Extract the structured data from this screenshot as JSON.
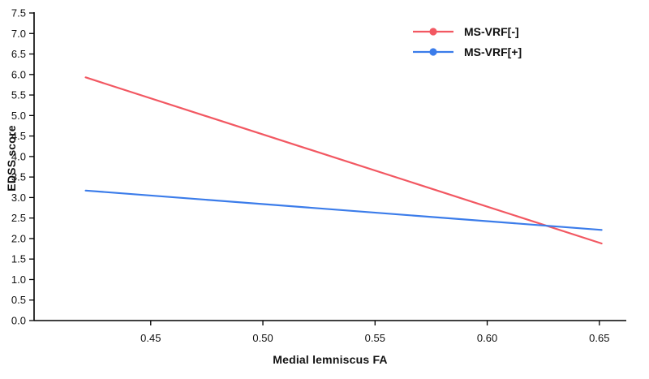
{
  "chart_data": {
    "type": "line",
    "title": "",
    "xlabel": "Medial lemniscus FA",
    "ylabel": "EDSS score",
    "xlim": [
      0.398,
      0.662
    ],
    "ylim": [
      0.0,
      7.5
    ],
    "x_ticks": [
      0.45,
      0.5,
      0.55,
      0.6,
      0.65
    ],
    "y_ticks": [
      0.0,
      0.5,
      1.0,
      1.5,
      2.0,
      2.5,
      3.0,
      3.5,
      4.0,
      4.5,
      5.0,
      5.5,
      6.0,
      6.5,
      7.0,
      7.5
    ],
    "grid": false,
    "legend_position": "top-right",
    "axis_color": "#000000",
    "background_color": "#ffffff",
    "series": [
      {
        "name": "MS-VRF[-]",
        "color": "#F25862",
        "x": [
          0.421,
          0.651
        ],
        "y": [
          5.93,
          1.88
        ]
      },
      {
        "name": "MS-VRF[+]",
        "color": "#3B7CEA",
        "x": [
          0.421,
          0.651
        ],
        "y": [
          3.17,
          2.21
        ]
      }
    ]
  }
}
